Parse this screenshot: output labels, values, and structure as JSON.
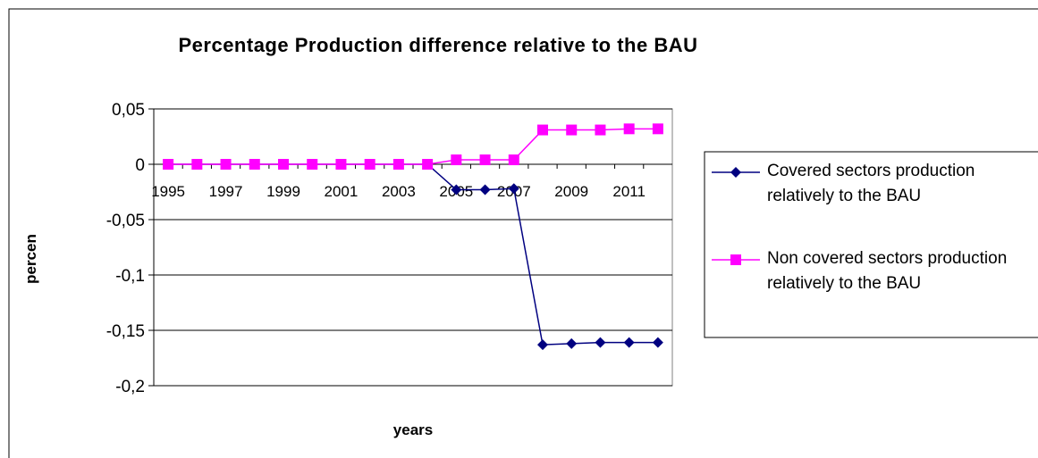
{
  "chart_data": {
    "type": "line",
    "title": "Percentage Production difference relative to the BAU",
    "x_label": "years",
    "y_label": "percen",
    "categories": [
      "1995",
      null,
      "1997",
      null,
      "1999",
      null,
      "2001",
      null,
      "2003",
      null,
      "2005",
      null,
      "2007",
      null,
      "2009",
      null,
      "2011",
      null
    ],
    "series": [
      {
        "name": "Covered sectors production relatively to the BAU",
        "color": "#000080",
        "marker": "diamond",
        "values": [
          0,
          0,
          0,
          0,
          0,
          0,
          0,
          0,
          0,
          0,
          -0.023,
          -0.023,
          -0.022,
          -0.163,
          -0.162,
          -0.161,
          -0.161,
          -0.161
        ]
      },
      {
        "name": "Non covered sectors production relatively to the BAU",
        "color": "#ff00ff",
        "marker": "square",
        "values": [
          0,
          0,
          0,
          0,
          0,
          0,
          0,
          0,
          0,
          0,
          0.004,
          0.004,
          0.004,
          0.031,
          0.031,
          0.031,
          0.032,
          0.032
        ]
      }
    ],
    "ylim": [
      -0.2,
      0.05
    ],
    "yticks": [
      {
        "value": -0.2,
        "label": "-0,2"
      },
      {
        "value": -0.15,
        "label": "-0,15"
      },
      {
        "value": -0.1,
        "label": "-0,1"
      },
      {
        "value": -0.05,
        "label": "-0,05"
      },
      0,
      {
        "value": 0.05,
        "label": "0,05"
      }
    ],
    "grid": true,
    "legend": "right"
  }
}
